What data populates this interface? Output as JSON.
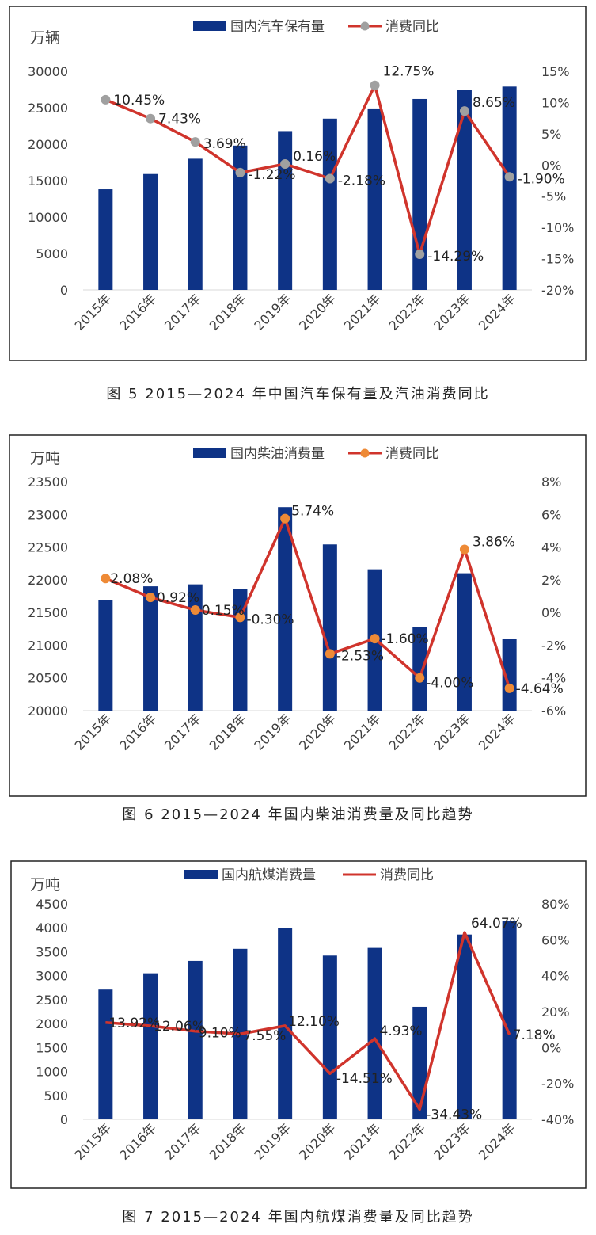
{
  "colors": {
    "bar": "#0e3386",
    "line": "#d0342c",
    "marker1": "#a0a0a0",
    "marker2": "#ee8a36",
    "frame": "#222222",
    "text": "#404040"
  },
  "chart_data": [
    {
      "type": "bar+line",
      "legend": {
        "bar": "国内汽车保有量",
        "line": "消费同比"
      },
      "left_unit": "万辆",
      "categories": [
        "2015年",
        "2016年",
        "2017年",
        "2018年",
        "2019年",
        "2020年",
        "2021年",
        "2022年",
        "2023年",
        "2024年"
      ],
      "bars": [
        13800,
        15900,
        18000,
        19800,
        21800,
        23500,
        24900,
        26200,
        27400,
        27900
      ],
      "line": [
        10.45,
        7.43,
        3.69,
        -1.22,
        0.16,
        -2.18,
        12.75,
        -14.29,
        8.65,
        -1.9
      ],
      "labels": [
        "10.45%",
        "7.43%",
        "3.69%",
        "-1.22%",
        "0.16%",
        "-2.18%",
        "12.75%",
        "-14.29%",
        "8.65%",
        "-1.90%"
      ],
      "y1_ticks": [
        0,
        5000,
        10000,
        15000,
        20000,
        25000,
        30000
      ],
      "y2_ticks": [
        "-20%",
        "-15%",
        "-10%",
        "-5%",
        "0%",
        "5%",
        "10%",
        "15%"
      ],
      "y1lim": [
        0,
        30000
      ],
      "y2lim": [
        -20,
        15
      ],
      "caption": "图 5 2015—2024 年中国汽车保有量及汽油消费同比"
    },
    {
      "type": "bar+line",
      "legend": {
        "bar": "国内柴油消费量",
        "line": "消费同比"
      },
      "left_unit": "万吨",
      "categories": [
        "2015年",
        "2016年",
        "2017年",
        "2018年",
        "2019年",
        "2020年",
        "2021年",
        "2022年",
        "2023年",
        "2024年"
      ],
      "bars": [
        21690,
        21900,
        21930,
        21860,
        23110,
        22540,
        22160,
        21280,
        22100,
        21090
      ],
      "line": [
        2.08,
        0.92,
        0.15,
        -0.3,
        5.74,
        -2.53,
        -1.6,
        -4.0,
        3.86,
        -4.64
      ],
      "labels": [
        "2.08%",
        "0.92%",
        "0.15%",
        "-0.30%",
        "5.74%",
        "-2.53%",
        "-1.60%",
        "-4.00%",
        "3.86%",
        "-4.64%"
      ],
      "y1_ticks": [
        20000,
        20500,
        21000,
        21500,
        22000,
        22500,
        23000,
        23500
      ],
      "y2_ticks": [
        "-6%",
        "-4%",
        "-2%",
        "0%",
        "2%",
        "4%",
        "6%",
        "8%"
      ],
      "y1lim": [
        20000,
        23500
      ],
      "y2lim": [
        -6,
        8
      ],
      "caption": "图 6 2015—2024 年国内柴油消费量及同比趋势"
    },
    {
      "type": "bar+line",
      "legend": {
        "bar": "国内航煤消费量",
        "line": "消费同比"
      },
      "left_unit": "万吨",
      "categories": [
        "2015年",
        "2016年",
        "2017年",
        "2018年",
        "2019年",
        "2020年",
        "2021年",
        "2022年",
        "2023年",
        "2024年"
      ],
      "bars": [
        2710,
        3050,
        3310,
        3560,
        4000,
        3420,
        3580,
        2350,
        3860,
        4140
      ],
      "line": [
        13.92,
        12.06,
        9.1,
        7.55,
        12.1,
        -14.51,
        4.93,
        -34.43,
        64.07,
        7.18
      ],
      "labels": [
        "13.92%",
        "12.06%",
        "9.10%",
        "7.55%",
        "12.10%",
        "-14.51%",
        "4.93%",
        "-34.43%",
        "64.07%",
        "7.18%"
      ],
      "y1_ticks": [
        0,
        500,
        1000,
        1500,
        2000,
        2500,
        3000,
        3500,
        4000,
        4500
      ],
      "y2_ticks": [
        "-40%",
        "-20%",
        "0%",
        "20%",
        "40%",
        "60%",
        "80%"
      ],
      "y1lim": [
        0,
        4500
      ],
      "y2lim": [
        -40,
        80
      ],
      "caption": "图 7 2015—2024 年国内航煤消费量及同比趋势"
    }
  ]
}
